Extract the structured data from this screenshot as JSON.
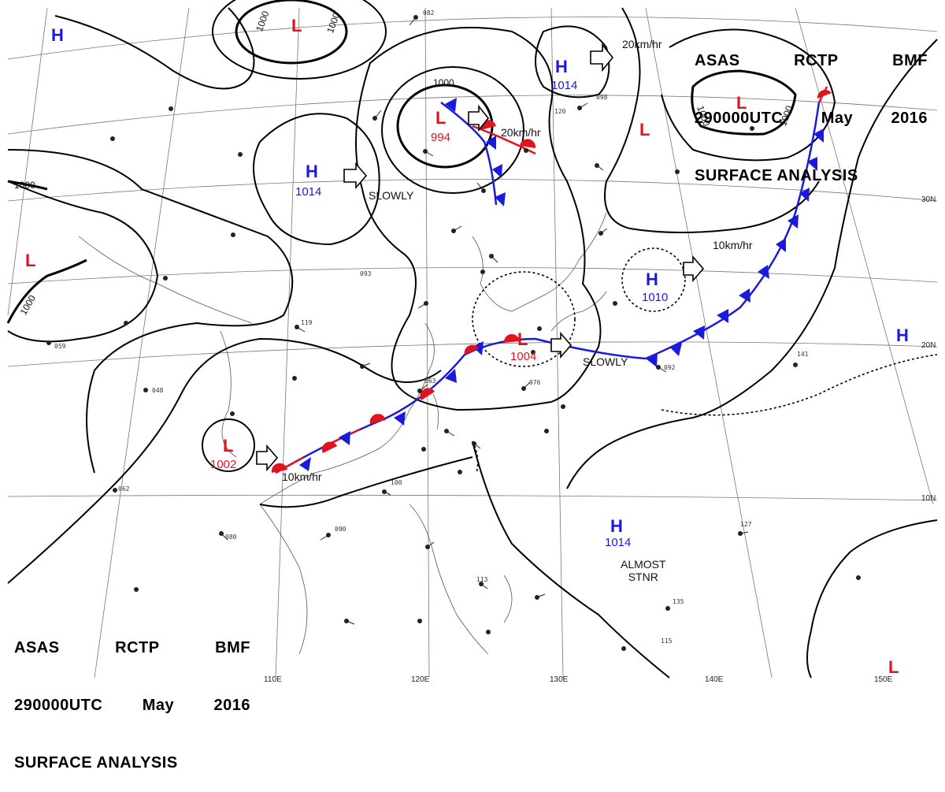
{
  "header": {
    "line1": [
      "ASAS",
      "RCTP",
      "BMF"
    ],
    "line2": [
      "290000UTC",
      "May",
      "2016"
    ],
    "line3": "SURFACE ANALYSIS"
  },
  "pressure_systems": [
    {
      "type": "H",
      "value": "1014",
      "id": "high-ne"
    },
    {
      "type": "H",
      "value": "1014",
      "id": "high-china"
    },
    {
      "type": "H",
      "value": "1010",
      "id": "high-pacific"
    },
    {
      "type": "H",
      "value": "1014",
      "id": "high-south"
    },
    {
      "type": "H",
      "value": "",
      "id": "high-nw"
    },
    {
      "type": "H",
      "value": "",
      "id": "high-east"
    },
    {
      "type": "L",
      "value": "994",
      "id": "low-manchuria"
    },
    {
      "type": "L",
      "value": "1004",
      "id": "low-japan"
    },
    {
      "type": "L",
      "value": "1002",
      "id": "low-south-china"
    },
    {
      "type": "L",
      "value": "",
      "id": "low-mongolia"
    },
    {
      "type": "L",
      "value": "",
      "id": "low-west"
    },
    {
      "type": "L",
      "value": "",
      "id": "low-kamchatka"
    },
    {
      "type": "L",
      "value": "",
      "id": "low-kuril"
    },
    {
      "type": "L",
      "value": "",
      "id": "low-se"
    }
  ],
  "motion_labels": [
    "20km/hr",
    "20km/hr",
    "SLOWLY",
    "10km/hr",
    "SLOWLY",
    "10km/hr",
    "ALMOST\nSTNR"
  ],
  "isobar_labels": [
    "1000",
    "1000",
    "1000",
    "1000",
    "1000",
    "1000",
    "1000"
  ],
  "lat_labels": [
    "30N",
    "20N",
    "10N"
  ],
  "lon_labels": [
    "110E",
    "120E",
    "130E",
    "140E",
    "150E"
  ],
  "station_codes": [
    "082",
    "098",
    "120",
    "119",
    "093",
    "063",
    "090",
    "100",
    "113",
    "127",
    "092",
    "141",
    "135",
    "080",
    "062",
    "048",
    "059",
    "115",
    "076"
  ],
  "colors": {
    "high": "#1a1adc",
    "low": "#e0141e",
    "warm_front": "#e0141e",
    "cold_front": "#1a1adc",
    "isobar": "#000000"
  }
}
